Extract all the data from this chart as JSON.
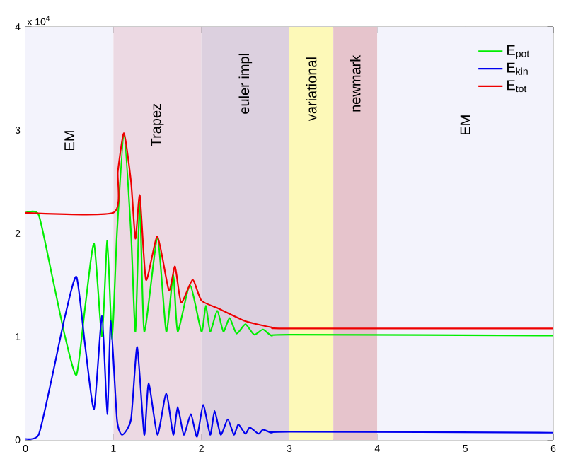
{
  "chart_data": {
    "type": "line",
    "xlim": [
      0,
      6
    ],
    "ylim": [
      0,
      4
    ],
    "xticks": [
      0,
      1,
      2,
      3,
      4,
      5,
      6
    ],
    "yticks": [
      0,
      1,
      2,
      3,
      4
    ],
    "legend": "top right",
    "annotations": [
      "x 10$^{4}$"
    ],
    "series": [
      {
        "name": "E$_{pot}$",
        "color": "#00ee00",
        "x": [
          0,
          0.15,
          0.3,
          0.45,
          0.58,
          0.68,
          0.78,
          0.87,
          0.93,
          0.985,
          1.04,
          1.12,
          1.2,
          1.25,
          1.3,
          1.35,
          1.5,
          1.6,
          1.68,
          1.73,
          1.87,
          2.0,
          2.05,
          2.1,
          2.18,
          2.25,
          2.32,
          2.4,
          2.5,
          2.6,
          2.7,
          2.8,
          3,
          6
        ],
        "values": [
          2.2,
          2.18,
          1.6,
          1.0,
          0.63,
          1.3,
          1.9,
          1.0,
          1.93,
          0.98,
          2.0,
          2.95,
          2.0,
          1.05,
          2.3,
          1.05,
          1.95,
          1.05,
          1.6,
          1.05,
          1.5,
          1.05,
          1.3,
          1.05,
          1.25,
          1.05,
          1.18,
          1.03,
          1.12,
          1.02,
          1.07,
          1.01,
          1.02,
          1.01
        ]
      },
      {
        "name": "E$_{kin}$",
        "color": "#0000ee",
        "x": [
          0,
          0.15,
          0.3,
          0.45,
          0.58,
          0.68,
          0.78,
          0.87,
          0.93,
          0.97,
          1.04,
          1.1,
          1.2,
          1.27,
          1.35,
          1.4,
          1.5,
          1.6,
          1.68,
          1.73,
          1.8,
          1.88,
          1.95,
          2.02,
          2.1,
          2.15,
          2.22,
          2.3,
          2.37,
          2.42,
          2.5,
          2.55,
          2.65,
          2.7,
          2.8,
          3,
          6
        ],
        "values": [
          0.01,
          0.05,
          0.6,
          1.2,
          1.58,
          0.9,
          0.3,
          1.2,
          0.25,
          1.15,
          0.2,
          0.05,
          0.2,
          0.9,
          0.05,
          0.55,
          0.05,
          0.45,
          0.05,
          0.32,
          0.05,
          0.25,
          0.03,
          0.34,
          0.05,
          0.28,
          0.05,
          0.2,
          0.05,
          0.15,
          0.06,
          0.12,
          0.06,
          0.1,
          0.07,
          0.08,
          0.07
        ]
      },
      {
        "name": "E$_{tot}$",
        "color": "#ee0000",
        "x": [
          0,
          1.0,
          1.05,
          1.12,
          1.2,
          1.25,
          1.3,
          1.37,
          1.5,
          1.63,
          1.7,
          1.77,
          1.9,
          2.0,
          2.2,
          2.5,
          2.8,
          3,
          6
        ],
        "values": [
          2.2,
          2.2,
          2.6,
          2.97,
          2.5,
          1.95,
          2.37,
          1.55,
          1.97,
          1.45,
          1.68,
          1.33,
          1.55,
          1.35,
          1.27,
          1.15,
          1.09,
          1.08,
          1.08
        ]
      }
    ],
    "bands": [
      {
        "axis": "x",
        "from": 0,
        "to": 1,
        "label": "EM",
        "color": "#f3f3fc"
      },
      {
        "axis": "x",
        "from": 1,
        "to": 2,
        "label": "Trapez",
        "color": "#ecd9e3"
      },
      {
        "axis": "x",
        "from": 2,
        "to": 3,
        "label": "euler impl",
        "color": "#dcd0df"
      },
      {
        "axis": "x",
        "from": 3,
        "to": 3.5,
        "label": "variational",
        "color": "#fdf9b8"
      },
      {
        "axis": "x",
        "from": 3.5,
        "to": 4,
        "label": "newmark",
        "color": "#e6c4cc"
      },
      {
        "axis": "x",
        "from": 4,
        "to": 6,
        "label": "EM",
        "color": "#f3f3fc"
      }
    ]
  }
}
